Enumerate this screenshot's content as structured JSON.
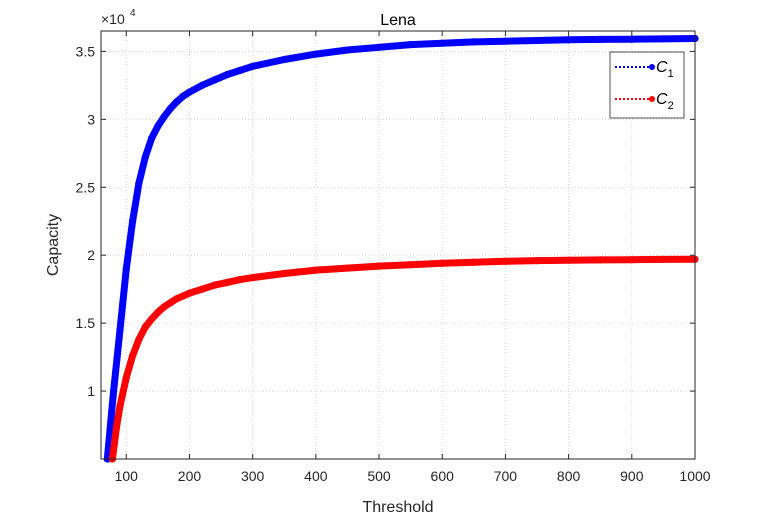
{
  "chart_data": {
    "type": "line",
    "title": "Lena",
    "xlabel": "Threshold",
    "ylabel": "Capacity",
    "y_scale_label": "×10",
    "y_scale_exponent": "4",
    "xlim": [
      60,
      1000
    ],
    "ylim": [
      5000,
      36500
    ],
    "xticks": [
      {
        "value": 100,
        "label": "100"
      },
      {
        "value": 200,
        "label": "200"
      },
      {
        "value": 300,
        "label": "300"
      },
      {
        "value": 400,
        "label": "400"
      },
      {
        "value": 500,
        "label": "500"
      },
      {
        "value": 600,
        "label": "600"
      },
      {
        "value": 700,
        "label": "700"
      },
      {
        "value": 800,
        "label": "800"
      },
      {
        "value": 900,
        "label": "900"
      },
      {
        "value": 1000,
        "label": "1000"
      }
    ],
    "yticks": [
      {
        "value": 10000,
        "label": "1"
      },
      {
        "value": 15000,
        "label": "1.5"
      },
      {
        "value": 20000,
        "label": "2"
      },
      {
        "value": 25000,
        "label": "2.5"
      },
      {
        "value": 30000,
        "label": "3"
      },
      {
        "value": 35000,
        "label": "3.5"
      }
    ],
    "grid": true,
    "legend_position": "top-right",
    "series": [
      {
        "name": "C",
        "subscript": "1",
        "color": "#0000ff",
        "x": [
          70,
          80,
          90,
          100,
          110,
          120,
          130,
          140,
          150,
          160,
          170,
          180,
          190,
          200,
          220,
          240,
          260,
          280,
          300,
          350,
          400,
          450,
          500,
          550,
          600,
          650,
          700,
          750,
          800,
          850,
          900,
          950,
          1000
        ],
        "y": [
          5000,
          10000,
          14500,
          19000,
          22500,
          25300,
          27200,
          28600,
          29500,
          30200,
          30800,
          31300,
          31700,
          32000,
          32500,
          32900,
          33300,
          33600,
          33900,
          34400,
          34800,
          35100,
          35300,
          35500,
          35600,
          35700,
          35750,
          35800,
          35850,
          35880,
          35900,
          35920,
          35950
        ]
      },
      {
        "name": "C",
        "subscript": "2",
        "color": "#ff0000",
        "x": [
          78,
          85,
          90,
          100,
          110,
          120,
          130,
          140,
          150,
          160,
          170,
          180,
          190,
          200,
          220,
          240,
          260,
          280,
          300,
          350,
          400,
          450,
          500,
          550,
          600,
          650,
          700,
          750,
          800,
          850,
          900,
          950,
          1000
        ],
        "y": [
          5000,
          7500,
          8900,
          11000,
          12600,
          13800,
          14700,
          15300,
          15800,
          16200,
          16500,
          16800,
          17000,
          17200,
          17500,
          17800,
          18000,
          18200,
          18350,
          18650,
          18900,
          19050,
          19200,
          19300,
          19400,
          19480,
          19550,
          19600,
          19630,
          19650,
          19670,
          19690,
          19700
        ]
      }
    ]
  }
}
